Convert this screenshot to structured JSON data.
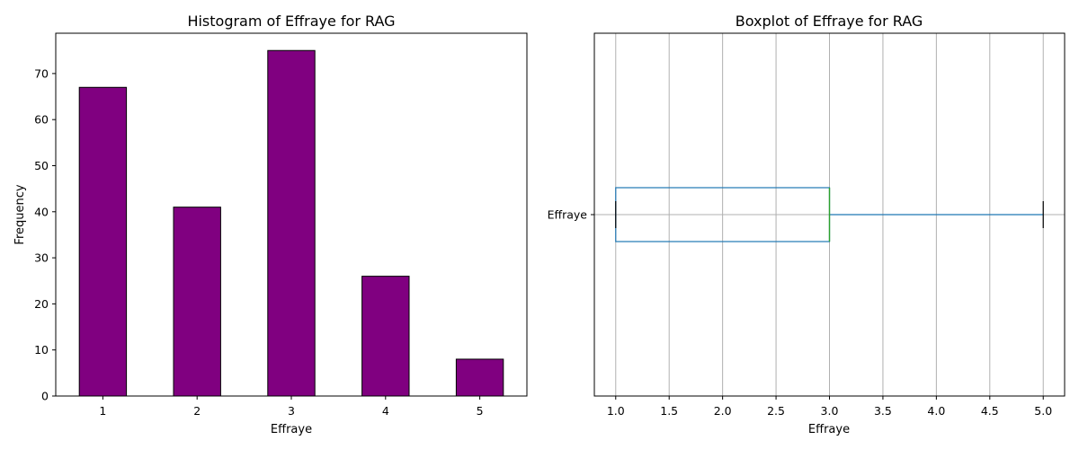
{
  "chart_data": [
    {
      "type": "bar",
      "title": "Histogram of Effraye for RAG",
      "xlabel": "Effraye",
      "ylabel": "Frequency",
      "categories": [
        "1",
        "2",
        "3",
        "4",
        "5"
      ],
      "values": [
        67,
        41,
        75,
        26,
        8
      ],
      "ylim": [
        0,
        78.75
      ],
      "yticks": [
        0,
        10,
        20,
        30,
        40,
        50,
        60,
        70
      ],
      "bar_color": "#800080",
      "edge_color": "#000000",
      "grid": false
    },
    {
      "type": "boxplot",
      "title": "Boxplot of Effraye for RAG",
      "xlabel": "Effraye",
      "category_label": "Effraye",
      "orientation": "horizontal",
      "stats": {
        "min": 1.0,
        "q1": 1.0,
        "median": 3.0,
        "q3": 3.0,
        "max": 5.0
      },
      "xlim": [
        0.8,
        5.2
      ],
      "xticks": [
        "1.0",
        "1.5",
        "2.0",
        "2.5",
        "3.0",
        "3.5",
        "4.0",
        "4.5",
        "5.0"
      ],
      "box_color": "#1f77b4",
      "median_color": "#2ca02c",
      "cap_color": "#000000",
      "grid": true
    }
  ]
}
